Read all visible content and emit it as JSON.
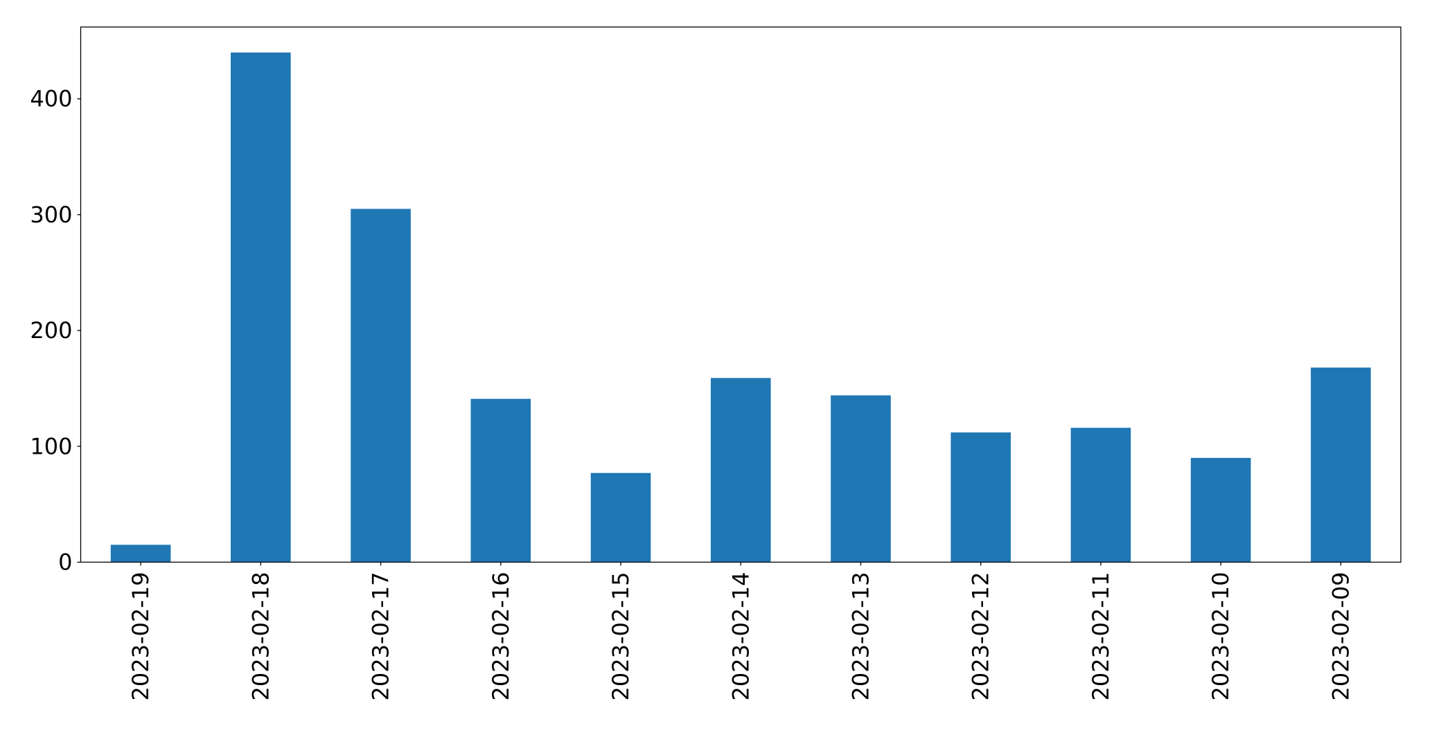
{
  "chart_data": {
    "type": "bar",
    "categories": [
      "2023-02-19",
      "2023-02-18",
      "2023-02-17",
      "2023-02-16",
      "2023-02-15",
      "2023-02-14",
      "2023-02-13",
      "2023-02-12",
      "2023-02-11",
      "2023-02-10",
      "2023-02-09"
    ],
    "values": [
      15,
      440,
      305,
      141,
      77,
      159,
      144,
      112,
      116,
      90,
      168
    ],
    "color": "#1f77b4",
    "ylim": [
      0,
      462
    ],
    "yticks": [
      0,
      100,
      200,
      300,
      400
    ],
    "grid": false
  }
}
